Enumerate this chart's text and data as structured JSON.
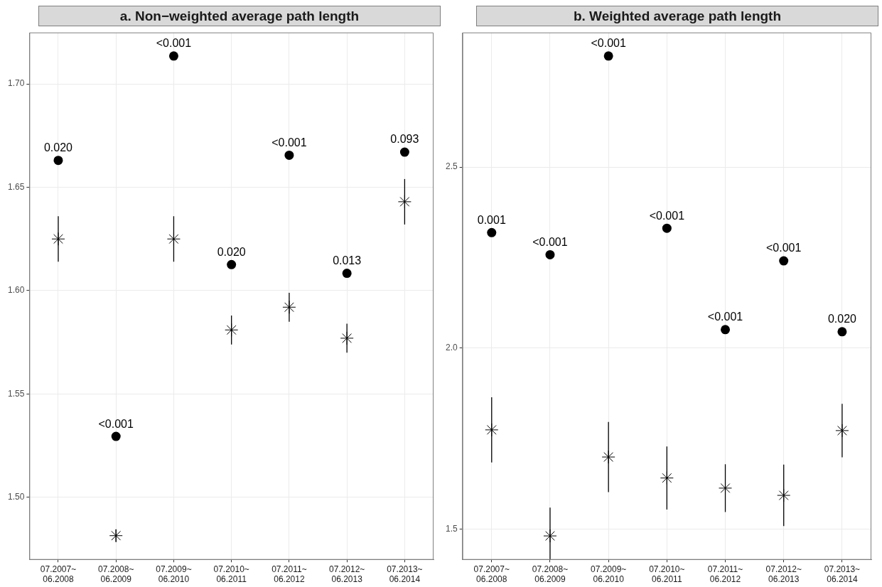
{
  "chart_data": [
    {
      "type": "scatter",
      "title": "a. Non−weighted average path length",
      "categories": [
        "07.2007~\n06.2008",
        "07.2008~\n06.2009",
        "07.2009~\n06.2010",
        "07.2010~\n06.2011",
        "07.2011~\n06.2012",
        "07.2012~\n06.2013",
        "07.2013~\n06.2014"
      ],
      "series": [
        {
          "color": "#000000",
          "marker": "circle",
          "values": [
            1.663,
            1.5295,
            1.7135,
            1.6126,
            1.6655,
            1.6084,
            1.667
          ]
        },
        {
          "color": "#000000",
          "marker": "cross",
          "values": [
            1.625,
            1.4815,
            1.625,
            1.581,
            1.592,
            1.577,
            1.643
          ],
          "errors": [
            0.011,
            0.003,
            0.011,
            0.007,
            0.007,
            0.007,
            0.011
          ]
        }
      ],
      "annotations": [
        {
          "text": "0.020",
          "x": "07.2007~\n06.2008",
          "y": 1.663
        },
        {
          "text": "<0.001",
          "x": "07.2008~\n06.2009",
          "y": 1.5295
        },
        {
          "text": "<0.001",
          "x": "07.2009~\n06.2010",
          "y": 1.7135
        },
        {
          "text": "0.020",
          "x": "07.2010~\n06.2011",
          "y": 1.6126
        },
        {
          "text": "<0.001",
          "x": "07.2011~\n06.2012",
          "y": 1.6655
        },
        {
          "text": "0.013",
          "x": "07.2012~\n06.2013",
          "y": 1.6084
        },
        {
          "text": "0.093",
          "x": "07.2013~\n06.2014",
          "y": 1.667
        }
      ],
      "ylim": [
        1.47,
        1.7247
      ],
      "yticks": [
        {
          "value": 1.5,
          "label": "1.50"
        },
        {
          "value": 1.55,
          "label": "1.55"
        },
        {
          "value": 1.6,
          "label": "1.60"
        },
        {
          "value": 1.65,
          "label": "1.65"
        },
        {
          "value": 1.7,
          "label": "1.70"
        }
      ],
      "grid": true,
      "legend": false
    },
    {
      "type": "scatter",
      "title": "b. Weighted average path length",
      "categories": [
        "07.2007~\n06.2008",
        "07.2008~\n06.2009",
        "07.2009~\n06.2010",
        "07.2010~\n06.2011",
        "07.2011~\n06.2012",
        "07.2012~\n06.2013",
        "07.2013~\n06.2014"
      ],
      "series": [
        {
          "color": "#000000",
          "marker": "circle",
          "values": [
            2.319,
            2.258,
            2.807,
            2.331,
            2.051,
            2.241,
            2.045
          ]
        },
        {
          "color": "#000000",
          "marker": "cross",
          "values": [
            1.774,
            1.481,
            1.699,
            1.641,
            1.613,
            1.593,
            1.772
          ],
          "errors": [
            0.09,
            [
              1.416,
              1.559
            ],
            0.097,
            0.087,
            0.066,
            0.085,
            0.074
          ]
        }
      ],
      "annotations": [
        {
          "text": "0.001",
          "x": "07.2007~\n06.2008",
          "y": 2.319
        },
        {
          "text": "<0.001",
          "x": "07.2008~\n06.2009",
          "y": 2.258
        },
        {
          "text": "<0.001",
          "x": "07.2009~\n06.2010",
          "y": 2.807
        },
        {
          "text": "<0.001",
          "x": "07.2010~\n06.2011",
          "y": 2.331
        },
        {
          "text": "<0.001",
          "x": "07.2011~\n06.2012",
          "y": 2.051
        },
        {
          "text": "<0.001",
          "x": "07.2012~\n06.2013",
          "y": 2.241
        },
        {
          "text": "0.020",
          "x": "07.2013~\n06.2014",
          "y": 2.045
        }
      ],
      "ylim": [
        1.416,
        2.871
      ],
      "yticks": [
        {
          "value": 1.5,
          "label": "1.5"
        },
        {
          "value": 2,
          "label": "2.0"
        },
        {
          "value": 2.5,
          "label": "2.5"
        }
      ],
      "grid": true,
      "legend": false
    }
  ]
}
